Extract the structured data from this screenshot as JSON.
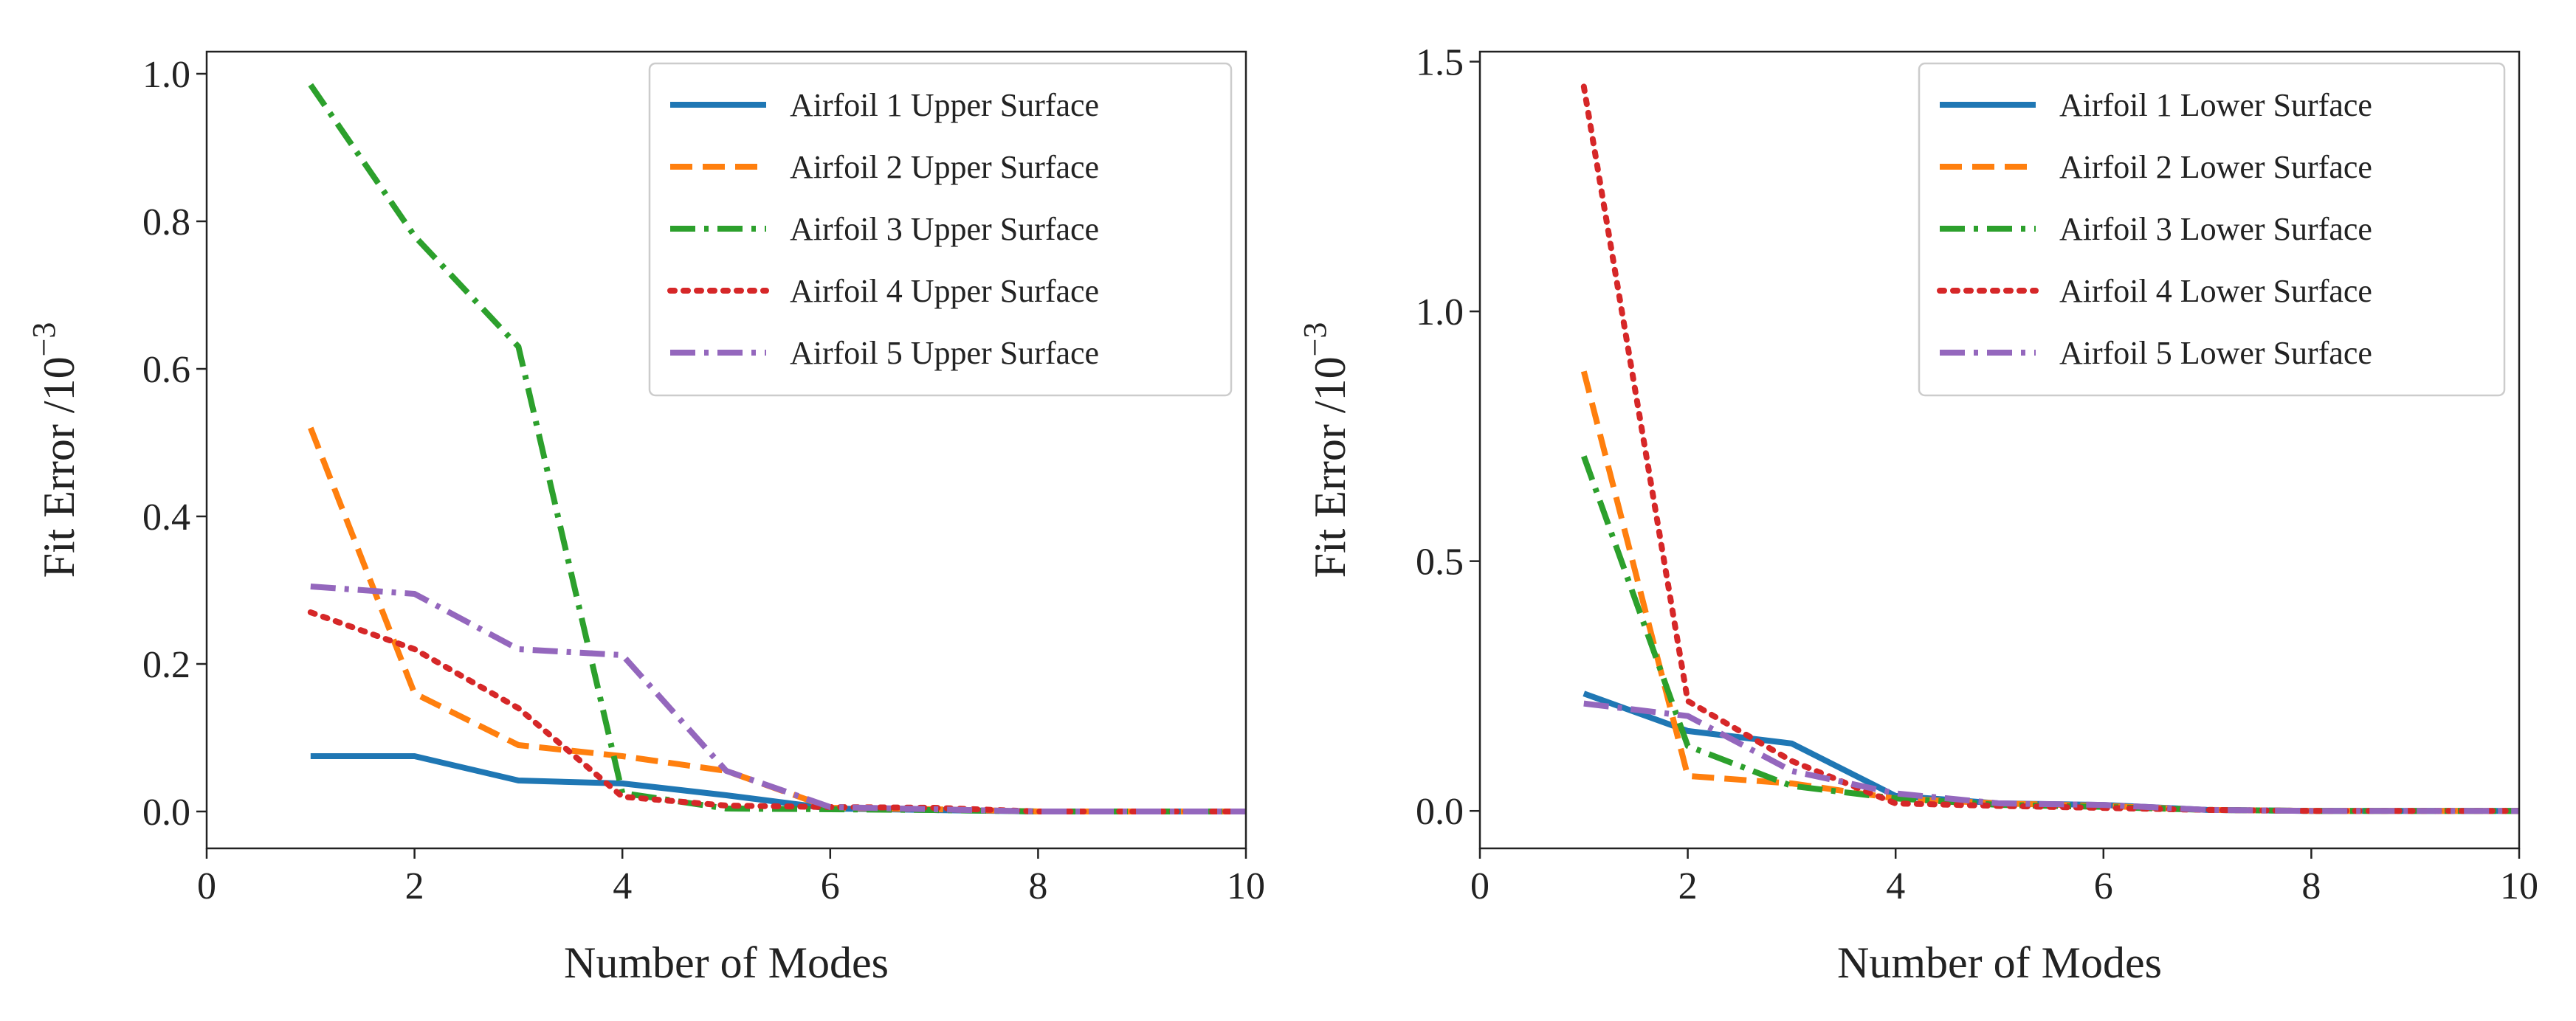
{
  "chart_data": [
    {
      "type": "line",
      "panel": "left",
      "title": "",
      "xlabel": "Number of Modes",
      "ylabel": "Fit Error /10",
      "ylabel_exponent": "−3",
      "xlim": [
        0,
        10
      ],
      "ylim": [
        -0.05,
        1.03
      ],
      "xticks": [
        0,
        2,
        4,
        6,
        8,
        10
      ],
      "xtick_labels": [
        "0",
        "2",
        "4",
        "6",
        "8",
        "10"
      ],
      "yticks": [
        0.0,
        0.2,
        0.4,
        0.6,
        0.8,
        1.0
      ],
      "ytick_labels": [
        "0.0",
        "0.2",
        "0.4",
        "0.6",
        "0.8",
        "1.0"
      ],
      "grid": false,
      "legend_position": "top-right",
      "x": [
        1,
        2,
        3,
        4,
        5,
        6,
        7,
        8,
        9,
        10
      ],
      "series": [
        {
          "name": "Airfoil 1 Upper Surface",
          "color": "#1f77b4",
          "dash": "solid",
          "values": [
            0.075,
            0.075,
            0.042,
            0.038,
            0.022,
            0.004,
            0.002,
            0.0,
            0.0,
            0.0
          ]
        },
        {
          "name": "Airfoil 2 Upper Surface",
          "color": "#ff7f0e",
          "dash": "dashed",
          "values": [
            0.52,
            0.16,
            0.09,
            0.075,
            0.055,
            0.005,
            0.003,
            0.0,
            0.0,
            0.0
          ]
        },
        {
          "name": "Airfoil 3 Upper Surface",
          "color": "#2ca02c",
          "dash": "dashdot",
          "values": [
            0.985,
            0.78,
            0.63,
            0.025,
            0.004,
            0.003,
            0.002,
            0.0,
            0.0,
            0.0
          ]
        },
        {
          "name": "Airfoil 4 Upper Surface",
          "color": "#d62728",
          "dash": "dotted",
          "values": [
            0.27,
            0.22,
            0.14,
            0.02,
            0.008,
            0.006,
            0.005,
            0.0,
            0.0,
            0.0
          ]
        },
        {
          "name": "Airfoil 5 Upper Surface",
          "color": "#9467bd",
          "dash": "dashdot",
          "values": [
            0.305,
            0.295,
            0.22,
            0.212,
            0.055,
            0.006,
            0.003,
            0.0,
            0.0,
            0.0
          ]
        }
      ]
    },
    {
      "type": "line",
      "panel": "right",
      "title": "",
      "xlabel": "Number of Modes",
      "ylabel": "Fit Error /10",
      "ylabel_exponent": "−3",
      "xlim": [
        0,
        10
      ],
      "ylim": [
        -0.075,
        1.52
      ],
      "xticks": [
        0,
        2,
        4,
        6,
        8,
        10
      ],
      "xtick_labels": [
        "0",
        "2",
        "4",
        "6",
        "8",
        "10"
      ],
      "yticks": [
        0.0,
        0.5,
        1.0,
        1.5
      ],
      "ytick_labels": [
        "0.0",
        "0.5",
        "1.0",
        "1.5"
      ],
      "grid": false,
      "legend_position": "top-right",
      "x": [
        1,
        2,
        3,
        4,
        5,
        6,
        7,
        8,
        9,
        10
      ],
      "series": [
        {
          "name": "Airfoil 1 Lower Surface",
          "color": "#1f77b4",
          "dash": "solid",
          "values": [
            0.235,
            0.16,
            0.135,
            0.03,
            0.015,
            0.012,
            0.002,
            0.0,
            0.0,
            0.0
          ]
        },
        {
          "name": "Airfoil 2 Lower Surface",
          "color": "#ff7f0e",
          "dash": "dashed",
          "values": [
            0.88,
            0.07,
            0.055,
            0.025,
            0.015,
            0.01,
            0.002,
            0.0,
            0.0,
            0.0
          ]
        },
        {
          "name": "Airfoil 3 Lower Surface",
          "color": "#2ca02c",
          "dash": "dashdot",
          "values": [
            0.71,
            0.13,
            0.05,
            0.025,
            0.012,
            0.008,
            0.002,
            0.0,
            0.0,
            0.0
          ]
        },
        {
          "name": "Airfoil 4 Lower Surface",
          "color": "#d62728",
          "dash": "dotted",
          "values": [
            1.45,
            0.22,
            0.1,
            0.015,
            0.01,
            0.006,
            0.002,
            0.0,
            0.0,
            0.0
          ]
        },
        {
          "name": "Airfoil 5 Lower Surface",
          "color": "#9467bd",
          "dash": "dashdot",
          "values": [
            0.215,
            0.19,
            0.08,
            0.035,
            0.015,
            0.012,
            0.002,
            0.0,
            0.0,
            0.0
          ]
        }
      ]
    }
  ]
}
